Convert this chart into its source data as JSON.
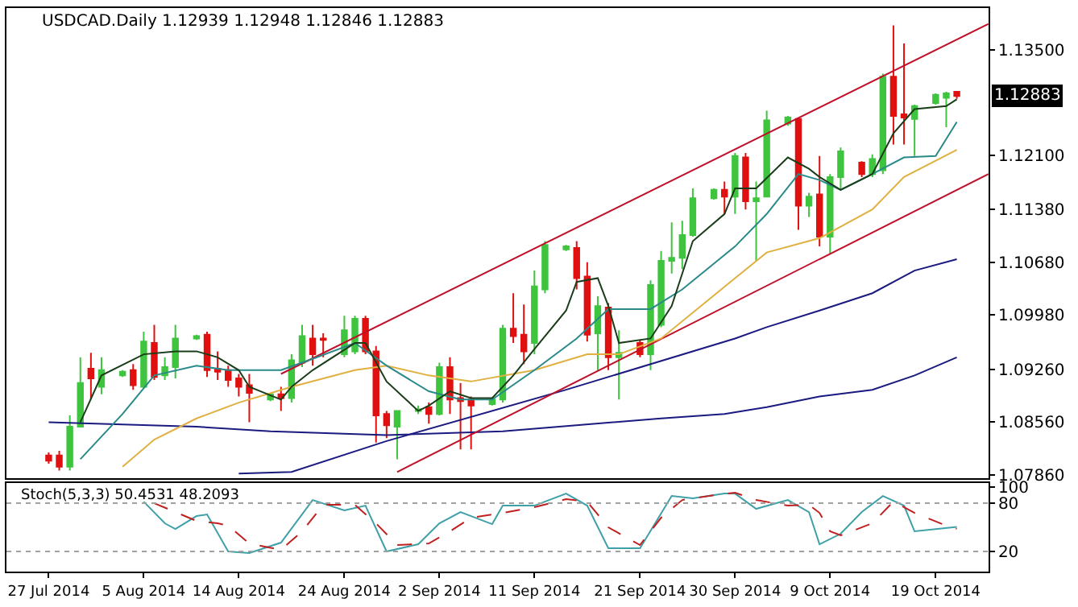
{
  "chart_data": [
    {
      "type": "candlestick",
      "title": "USDCAD.Daily 1.12939 1.12948 1.12846 1.12883",
      "tick_labels": "y",
      "x": [
        "2014-07-27",
        "2014-07-28",
        "2014-07-29",
        "2014-07-30",
        "2014-07-31",
        "2014-08-01",
        "2014-08-03",
        "2014-08-04",
        "2014-08-05",
        "2014-08-06",
        "2014-08-07",
        "2014-08-08",
        "2014-08-10",
        "2014-08-11",
        "2014-08-12",
        "2014-08-13",
        "2014-08-14",
        "2014-08-15",
        "2014-08-17",
        "2014-08-18",
        "2014-08-19",
        "2014-08-20",
        "2014-08-21",
        "2014-08-22",
        "2014-08-24",
        "2014-08-25",
        "2014-08-26",
        "2014-08-27",
        "2014-08-28",
        "2014-08-29",
        "2014-08-31",
        "2014-09-01",
        "2014-09-02",
        "2014-09-03",
        "2014-09-04",
        "2014-09-05",
        "2014-09-07",
        "2014-09-08",
        "2014-09-09",
        "2014-09-10",
        "2014-09-11",
        "2014-09-12",
        "2014-09-14",
        "2014-09-15",
        "2014-09-16",
        "2014-09-17",
        "2014-09-18",
        "2014-09-19",
        "2014-09-21",
        "2014-09-22",
        "2014-09-23",
        "2014-09-24",
        "2014-09-25",
        "2014-09-26",
        "2014-09-28",
        "2014-09-29",
        "2014-09-30",
        "2014-10-01",
        "2014-10-02",
        "2014-10-03",
        "2014-10-05",
        "2014-10-06",
        "2014-10-07",
        "2014-10-08",
        "2014-10-09",
        "2014-10-10",
        "2014-10-12",
        "2014-10-13",
        "2014-10-14",
        "2014-10-15",
        "2014-10-16",
        "2014-10-17",
        "2014-10-19",
        "2014-10-20",
        "2014-10-21"
      ],
      "ohlc": [
        [
          1.0812,
          1.0816,
          1.0801,
          1.0805
        ],
        [
          1.0812,
          1.0818,
          1.0792,
          1.0797
        ],
        [
          1.0797,
          1.0865,
          1.0792,
          1.085
        ],
        [
          1.085,
          1.0942,
          1.085,
          1.0908
        ],
        [
          1.0927,
          1.0948,
          1.0886,
          1.0914
        ],
        [
          1.0903,
          1.0942,
          1.0893,
          1.0925
        ],
        [
          1.0918,
          1.0925,
          1.0916,
          1.0923
        ],
        [
          1.0925,
          1.0933,
          1.0899,
          1.0905
        ],
        [
          1.0903,
          1.0976,
          1.0901,
          1.0963
        ],
        [
          1.0961,
          1.0985,
          1.0912,
          1.0916
        ],
        [
          1.0918,
          1.0942,
          1.0912,
          1.0929
        ],
        [
          1.0929,
          1.0985,
          1.0914,
          1.0967
        ],
        [
          1.0967,
          1.0972,
          1.0965,
          1.097
        ],
        [
          1.0972,
          1.0976,
          1.0916,
          1.0925
        ],
        [
          1.0927,
          1.095,
          1.0912,
          1.0923
        ],
        [
          1.0925,
          1.0931,
          1.0903,
          1.0912
        ],
        [
          1.0914,
          1.092,
          1.089,
          1.0903
        ],
        [
          1.0905,
          1.092,
          1.0856,
          1.0895
        ],
        [
          1.0886,
          1.0895,
          1.0884,
          1.0893
        ],
        [
          1.0893,
          1.0903,
          1.0871,
          1.0888
        ],
        [
          1.0888,
          1.0946,
          1.0882,
          1.0938
        ],
        [
          1.0935,
          1.0985,
          1.0929,
          1.097
        ],
        [
          1.0967,
          1.0985,
          1.0931,
          1.0946
        ],
        [
          1.0967,
          1.0974,
          1.0942,
          1.0965
        ],
        [
          1.0946,
          1.0997,
          1.0942,
          1.0978
        ],
        [
          1.095,
          1.0997,
          1.0946,
          1.0993
        ],
        [
          1.0993,
          1.0997,
          1.0946,
          1.095
        ],
        [
          1.095,
          1.0957,
          1.0829,
          1.0865
        ],
        [
          1.0867,
          1.0871,
          1.0835,
          1.0852
        ],
        [
          1.085,
          1.0871,
          1.0807,
          1.0871
        ],
        [
          1.0871,
          1.0878,
          1.0867,
          1.0873
        ],
        [
          1.0876,
          1.0882,
          1.0854,
          1.0867
        ],
        [
          1.0867,
          1.0935,
          1.0865,
          1.0929
        ],
        [
          1.0929,
          1.0942,
          1.0867,
          1.0886
        ],
        [
          1.0888,
          1.0908,
          1.082,
          1.0884
        ],
        [
          1.0886,
          1.089,
          1.082,
          1.0878
        ],
        [
          1.088,
          1.0888,
          1.0878,
          1.0886
        ],
        [
          1.0886,
          1.0985,
          1.0882,
          1.098
        ],
        [
          1.098,
          1.1027,
          1.0961,
          1.097
        ],
        [
          1.0972,
          1.1012,
          1.0933,
          1.095
        ],
        [
          1.0961,
          1.1057,
          1.0946,
          1.1036
        ],
        [
          1.1032,
          1.1096,
          1.1027,
          1.1091
        ],
        [
          1.1085,
          1.1091,
          1.1083,
          1.1089
        ],
        [
          1.1087,
          1.1096,
          1.1032,
          1.1047
        ],
        [
          1.1049,
          1.1068,
          1.0963,
          1.0972
        ],
        [
          1.0974,
          1.1023,
          1.0925,
          1.101
        ],
        [
          1.1008,
          1.1014,
          1.0925,
          1.0942
        ],
        [
          1.0942,
          1.0978,
          1.0886,
          1.0948
        ],
        [
          1.0961,
          1.0965,
          1.0942,
          1.0946
        ],
        [
          1.0946,
          1.1044,
          1.0925,
          1.1038
        ],
        [
          1.0985,
          1.1083,
          1.0982,
          1.107
        ],
        [
          1.107,
          1.1121,
          1.1053,
          1.1074
        ],
        [
          1.1074,
          1.1123,
          1.1059,
          1.1104
        ],
        [
          1.1104,
          1.1166,
          1.1102,
          1.1153
        ],
        [
          1.1153,
          1.1166,
          1.1151,
          1.1164
        ],
        [
          1.1164,
          1.1175,
          1.1132,
          1.1155
        ],
        [
          1.1155,
          1.1213,
          1.1132,
          1.1209
        ],
        [
          1.1207,
          1.1213,
          1.1138,
          1.1149
        ],
        [
          1.1149,
          1.1175,
          1.107,
          1.1153
        ],
        [
          1.1155,
          1.1269,
          1.1155,
          1.1256
        ],
        [
          1.1252,
          1.1262,
          1.1249,
          1.126
        ],
        [
          1.1258,
          1.126,
          1.1111,
          1.1143
        ],
        [
          1.1143,
          1.116,
          1.1128,
          1.1155
        ],
        [
          1.1158,
          1.1209,
          1.1089,
          1.1102
        ],
        [
          1.1102,
          1.1185,
          1.1079,
          1.1181
        ],
        [
          1.1181,
          1.122,
          1.1164,
          1.1215
        ],
        [
          1.12,
          1.1202,
          1.1181,
          1.1185
        ],
        [
          1.1185,
          1.1211,
          1.1181,
          1.1205
        ],
        [
          1.119,
          1.1318,
          1.1185,
          1.1314
        ],
        [
          1.1314,
          1.1382,
          1.1224,
          1.1262
        ],
        [
          1.1264,
          1.1358,
          1.1224,
          1.126
        ],
        [
          1.1258,
          1.1277,
          1.1209,
          1.1275
        ],
        [
          1.1279,
          1.1292,
          1.1277,
          1.129
        ],
        [
          1.1286,
          1.1294,
          1.1247,
          1.1292
        ],
        [
          1.12939,
          1.12948,
          1.12846,
          1.12883
        ]
      ],
      "colors": [
        "#e01010",
        "#e01010",
        "#3ec43e",
        "#3ec43e",
        "#e01010",
        "#3ec43e",
        "#3ec43e",
        "#e01010",
        "#3ec43e",
        "#e01010",
        "#3ec43e",
        "#3ec43e",
        "#3ec43e",
        "#e01010",
        "#e01010",
        "#e01010",
        "#e01010",
        "#e01010",
        "#3ec43e",
        "#e01010",
        "#3ec43e",
        "#3ec43e",
        "#e01010",
        "#e01010",
        "#3ec43e",
        "#3ec43e",
        "#e01010",
        "#e01010",
        "#e01010",
        "#3ec43e",
        "#3ec43e",
        "#e01010",
        "#3ec43e",
        "#e01010",
        "#e01010",
        "#e01010",
        "#3ec43e",
        "#3ec43e",
        "#e01010",
        "#e01010",
        "#3ec43e",
        "#3ec43e",
        "#3ec43e",
        "#e01010",
        "#e01010",
        "#3ec43e",
        "#e01010",
        "#3ec43e",
        "#e01010",
        "#3ec43e",
        "#3ec43e",
        "#3ec43e",
        "#3ec43e",
        "#3ec43e",
        "#3ec43e",
        "#e01010",
        "#3ec43e",
        "#e01010",
        "#3ec43e",
        "#3ec43e",
        "#3ec43e",
        "#e01010",
        "#3ec43e",
        "#e01010",
        "#3ec43e",
        "#3ec43e",
        "#e01010",
        "#3ec43e",
        "#3ec43e",
        "#e01010",
        "#e01010",
        "#3ec43e",
        "#3ec43e",
        "#3ec43e",
        "#e01010"
      ],
      "series": [
        {
          "type": "line",
          "color": "#1a1a80",
          "x": [
            "2014-07-27",
            "2014-08-10",
            "2014-08-17",
            "2014-08-28",
            "2014-09-08",
            "2014-09-23",
            "2014-09-29",
            "2014-10-03",
            "2014-10-08",
            "2014-10-13",
            "2014-10-17",
            "2014-10-21"
          ],
          "values": [
            1.0856,
            1.085,
            1.0844,
            1.0839,
            1.0844,
            1.0861,
            1.0867,
            1.0876,
            1.089,
            1.0899,
            1.0918,
            1.0942
          ]
        },
        {
          "type": "line",
          "color": "#1a1a80",
          "x": [
            "2014-08-14",
            "2014-08-19",
            "2014-08-28",
            "2014-09-14",
            "2014-09-30",
            "2014-10-03",
            "2014-10-08",
            "2014-10-13",
            "2014-10-17",
            "2014-10-21"
          ],
          "values": [
            1.0788,
            1.079,
            1.0831,
            1.0899,
            1.0967,
            1.0982,
            1.1004,
            1.1027,
            1.1057,
            1.1072
          ]
        },
        {
          "type": "line",
          "color": "#c0102a",
          "x": [
            "2014-08-18",
            "2014-10-24"
          ],
          "values": [
            1.092,
            1.1384
          ]
        },
        {
          "type": "line",
          "color": "#c0102a",
          "x": [
            "2014-08-29",
            "2014-10-24"
          ],
          "values": [
            1.079,
            1.1185
          ]
        },
        {
          "type": "line",
          "color": "#e0b040",
          "x": [
            "2014-08-03",
            "2014-08-06",
            "2014-08-10",
            "2014-08-14",
            "2014-08-19",
            "2014-08-25",
            "2014-08-28",
            "2014-09-01",
            "2014-09-05",
            "2014-09-11",
            "2014-09-16",
            "2014-09-19",
            "2014-09-23",
            "2014-09-30",
            "2014-10-03",
            "2014-10-08",
            "2014-10-13",
            "2014-10-16",
            "2014-10-21"
          ],
          "values": [
            1.0797,
            1.0833,
            1.0861,
            1.0882,
            1.0903,
            1.0925,
            1.0931,
            1.0918,
            1.091,
            1.0925,
            1.0946,
            1.0946,
            1.0967,
            1.1047,
            1.1081,
            1.11,
            1.1138,
            1.1181,
            1.1217
          ]
        },
        {
          "type": "line",
          "color": "#2a8a8a",
          "x": [
            "2014-07-30",
            "2014-08-03",
            "2014-08-06",
            "2014-08-10",
            "2014-08-13",
            "2014-08-18",
            "2014-08-21",
            "2014-08-25",
            "2014-08-28",
            "2014-09-01",
            "2014-09-04",
            "2014-09-07",
            "2014-09-11",
            "2014-09-15",
            "2014-09-18",
            "2014-09-22",
            "2014-09-25",
            "2014-09-30",
            "2014-10-03",
            "2014-10-06",
            "2014-10-08",
            "2014-10-10",
            "2014-10-13",
            "2014-10-16",
            "2014-10-19",
            "2014-10-21"
          ],
          "values": [
            1.0807,
            1.0867,
            1.0918,
            1.0931,
            1.0925,
            1.0925,
            1.094,
            1.0961,
            1.0931,
            1.0897,
            1.0886,
            1.0886,
            1.0925,
            1.0967,
            1.1006,
            1.1006,
            1.1032,
            1.1089,
            1.1132,
            1.1185,
            1.1177,
            1.1164,
            1.1185,
            1.1207,
            1.1209,
            1.1254
          ]
        },
        {
          "type": "line",
          "color": "#1a3d1a",
          "x": [
            "2014-07-30",
            "2014-08-01",
            "2014-08-05",
            "2014-08-08",
            "2014-08-10",
            "2014-08-12",
            "2014-08-14",
            "2014-08-15",
            "2014-08-18",
            "2014-08-19",
            "2014-08-21",
            "2014-08-25",
            "2014-08-26",
            "2014-08-28",
            "2014-08-31",
            "2014-09-01",
            "2014-09-03",
            "2014-09-05",
            "2014-09-07",
            "2014-09-09",
            "2014-09-11",
            "2014-09-14",
            "2014-09-15",
            "2014-09-17",
            "2014-09-18",
            "2014-09-19",
            "2014-09-22",
            "2014-09-24",
            "2014-09-26",
            "2014-09-29",
            "2014-09-30",
            "2014-10-02",
            "2014-10-05",
            "2014-10-07",
            "2014-10-08",
            "2014-10-10",
            "2014-10-13",
            "2014-10-15",
            "2014-10-17",
            "2014-10-20",
            "2014-10-21"
          ],
          "values": [
            1.0856,
            1.0918,
            1.0946,
            1.095,
            1.095,
            1.0942,
            1.0925,
            1.0903,
            1.0886,
            1.0903,
            1.0925,
            1.0961,
            1.0961,
            1.091,
            1.0871,
            1.0878,
            1.0897,
            1.0888,
            1.0888,
            1.0918,
            1.0953,
            1.1004,
            1.1042,
            1.1047,
            1.101,
            1.0961,
            1.0967,
            1.101,
            1.1096,
            1.1132,
            1.1166,
            1.1166,
            1.1207,
            1.1192,
            1.1181,
            1.1164,
            1.1185,
            1.1239,
            1.1271,
            1.1275,
            1.1284
          ]
        }
      ],
      "xlim": [
        "2014-07-23",
        "2014-10-24"
      ],
      "ylim": [
        1.0782,
        1.1405
      ],
      "yticks": [
        {
          "value": 1.0786,
          "label": "1.07860"
        },
        {
          "value": 1.0856,
          "label": "1.08560"
        },
        {
          "value": 1.0926,
          "label": "1.09260"
        },
        {
          "value": 1.0998,
          "label": "1.09980"
        },
        {
          "value": 1.1068,
          "label": "1.10680"
        },
        {
          "value": 1.1138,
          "label": "1.11380"
        },
        {
          "value": 1.121,
          "label": "1.12100"
        },
        {
          "value": 1.135,
          "label": "1.13500"
        }
      ],
      "annotations": [
        {
          "text": "1.12883",
          "y": 1.12883
        }
      ]
    },
    {
      "type": "line",
      "title": "Stoch(5,3,3) 50.4531 48.2093",
      "series": [
        {
          "color": "#3fa0a8",
          "x": [
            "2014-08-05",
            "2014-08-07",
            "2014-08-08",
            "2014-08-10",
            "2014-08-11",
            "2014-08-13",
            "2014-08-15",
            "2014-08-18",
            "2014-08-21",
            "2014-08-24",
            "2014-08-26",
            "2014-08-28",
            "2014-08-31",
            "2014-09-02",
            "2014-09-04",
            "2014-09-07",
            "2014-09-08",
            "2014-09-11",
            "2014-09-14",
            "2014-09-16",
            "2014-09-18",
            "2014-09-21",
            "2014-09-24",
            "2014-09-26",
            "2014-09-29",
            "2014-09-30",
            "2014-10-02",
            "2014-10-05",
            "2014-10-07",
            "2014-10-08",
            "2014-10-10",
            "2014-10-12",
            "2014-10-14",
            "2014-10-16",
            "2014-10-17",
            "2014-10-21"
          ],
          "values": [
            82,
            55,
            48,
            64,
            66,
            20,
            18,
            31,
            84,
            71,
            77,
            20,
            29,
            55,
            69,
            54,
            77,
            77,
            92,
            77,
            24,
            24,
            89,
            86,
            92,
            92,
            73,
            84,
            69,
            29,
            42,
            69,
            89,
            77,
            45,
            50.4531
          ]
        },
        {
          "color": "#c02020",
          "line_style": "dashed",
          "x": [
            "2014-08-06",
            "2014-08-10",
            "2014-08-12",
            "2014-08-13",
            "2014-08-15",
            "2014-08-18",
            "2014-08-20",
            "2014-08-22",
            "2014-08-25",
            "2014-08-27",
            "2014-08-29",
            "2014-09-01",
            "2014-09-03",
            "2014-09-05",
            "2014-09-08",
            "2014-09-11",
            "2014-09-14",
            "2014-09-16",
            "2014-09-18",
            "2014-09-21",
            "2014-09-23",
            "2014-09-25",
            "2014-09-28",
            "2014-09-30",
            "2014-10-02",
            "2014-10-05",
            "2014-10-07",
            "2014-10-08",
            "2014-10-09",
            "2014-10-10",
            "2014-10-13",
            "2014-10-15",
            "2014-10-17",
            "2014-10-20",
            "2014-10-21"
          ],
          "values": [
            80,
            58,
            55,
            52,
            30,
            22,
            45,
            78,
            78,
            55,
            28,
            30,
            45,
            62,
            68,
            75,
            85,
            82,
            50,
            28,
            62,
            84,
            90,
            93,
            84,
            77,
            78,
            68,
            45,
            40,
            55,
            82,
            68,
            52,
            48.2093
          ]
        }
      ],
      "xlim": [
        "2014-07-23",
        "2014-10-24"
      ],
      "xticks": [
        {
          "value": "2014-07-27",
          "label": "27 Jul 2014"
        },
        {
          "value": "2014-08-05",
          "label": "5 Aug 2014"
        },
        {
          "value": "2014-08-14",
          "label": "14 Aug 2014"
        },
        {
          "value": "2014-08-24",
          "label": "24 Aug 2014"
        },
        {
          "value": "2014-09-02",
          "label": "2 Sep 2014"
        },
        {
          "value": "2014-09-11",
          "label": "11 Sep 2014"
        },
        {
          "value": "2014-09-21",
          "label": "21 Sep 2014"
        },
        {
          "value": "2014-09-30",
          "label": "30 Sep 2014"
        },
        {
          "value": "2014-10-09",
          "label": "9 Oct 2014"
        },
        {
          "value": "2014-10-19",
          "label": "19 Oct 2014"
        }
      ],
      "ylim": [
        -5,
        105
      ],
      "yticks": [
        20,
        80,
        100
      ],
      "ref_lines": [
        {
          "axis": "y",
          "value": 80,
          "color": "#a0a0a0",
          "line_style": "dotted"
        },
        {
          "axis": "y",
          "value": 20,
          "color": "#a0a0a0",
          "line_style": "dotted"
        }
      ]
    }
  ]
}
